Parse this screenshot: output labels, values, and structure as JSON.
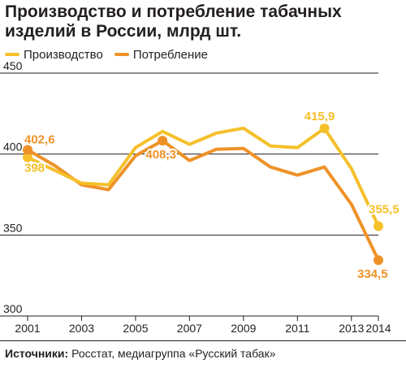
{
  "title": "Производство и потребление табачных изделий в России, млрд шт.",
  "colors": {
    "production": "#f5c02a",
    "consumption": "#ee9228",
    "grid": "#231f20",
    "text": "#231f20"
  },
  "source": {
    "label": "Источники:",
    "text": "Росстат, медиагруппа «Русский табак»"
  },
  "chart_data": {
    "type": "line",
    "x": [
      2001,
      2002,
      2003,
      2004,
      2005,
      2006,
      2007,
      2008,
      2009,
      2010,
      2011,
      2012,
      2013,
      2014
    ],
    "series": [
      {
        "name": "Производство",
        "color": "#f5c02a",
        "values": [
          398,
          390,
          382,
          381,
          404,
          414,
          406,
          413,
          416,
          405,
          404,
          415.9,
          391,
          355.5
        ]
      },
      {
        "name": "Потребление",
        "color": "#ee9228",
        "values": [
          402.6,
          393,
          381,
          378,
          399,
          408.3,
          396,
          403,
          403.5,
          392,
          387,
          392,
          369,
          334.5
        ]
      }
    ],
    "annotations": [
      {
        "series": 0,
        "x": 2001,
        "label": "398"
      },
      {
        "series": 1,
        "x": 2001,
        "label": "402,6"
      },
      {
        "series": 1,
        "x": 2006,
        "label": "408,3"
      },
      {
        "series": 0,
        "x": 2012,
        "label": "415,9"
      },
      {
        "series": 0,
        "x": 2014,
        "label": "355,5"
      },
      {
        "series": 1,
        "x": 2014,
        "label": "334,5"
      }
    ],
    "yticks": [
      "300",
      "350",
      "400",
      "450"
    ],
    "ytick_values": [
      300,
      350,
      400,
      450
    ],
    "xticks": [
      "2001",
      "2003",
      "2005",
      "2007",
      "2009",
      "2011",
      "2013",
      "2014"
    ],
    "xtick_values": [
      2001,
      2003,
      2005,
      2007,
      2009,
      2011,
      2013,
      2014
    ],
    "ylim": [
      300,
      450
    ],
    "xlim": [
      2001,
      2014
    ],
    "grid": true,
    "legend_position": "top-left"
  }
}
